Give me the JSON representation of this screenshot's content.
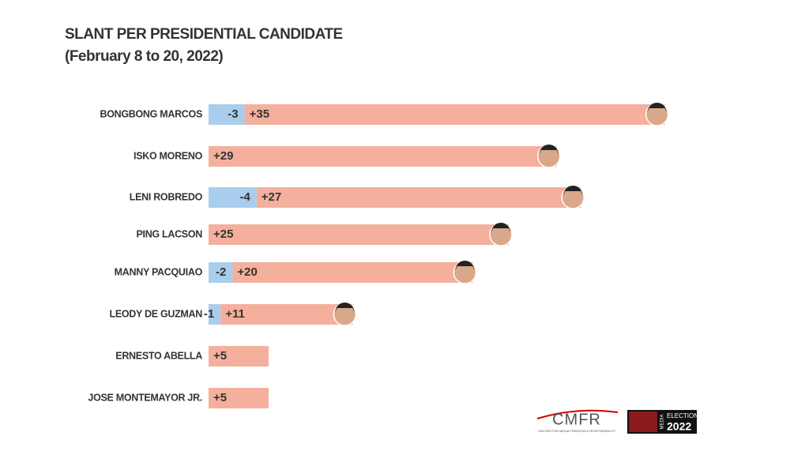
{
  "chart_data": {
    "type": "diverging_stacked_bar",
    "title": "SLANT PER PRESIDENTIAL CANDIDATE",
    "subtitle": "(February 8 to 20, 2022)",
    "categories": [
      "BONGBONG MARCOS",
      "ISKO MORENO",
      "LENI ROBREDO",
      "PING LACSON",
      "MANNY PACQUIAO",
      "LEODY DE GUZMAN",
      "ERNESTO ABELLA",
      "JOSE MONTEMAYOR JR."
    ],
    "series": [
      {
        "color": "#a9cdec",
        "values": [
          -3,
          null,
          -4,
          null,
          -2,
          -1,
          null,
          null
        ]
      },
      {
        "color": "#f4b09c",
        "values": [
          35,
          29,
          27,
          25,
          20,
          11,
          5,
          5
        ],
        "value_labels": [
          "+35",
          "+29",
          "+27",
          "+25",
          "+20",
          "+11",
          "+5",
          "+5"
        ]
      }
    ]
  },
  "logos": {
    "cmfr": "CMFR",
    "cmfr_sub": "CENTER FOR MEDIA FREEDOM & RESPONSIBILITY",
    "media": "MEDIA",
    "elections": "ELECTIONS",
    "year": "2022"
  }
}
